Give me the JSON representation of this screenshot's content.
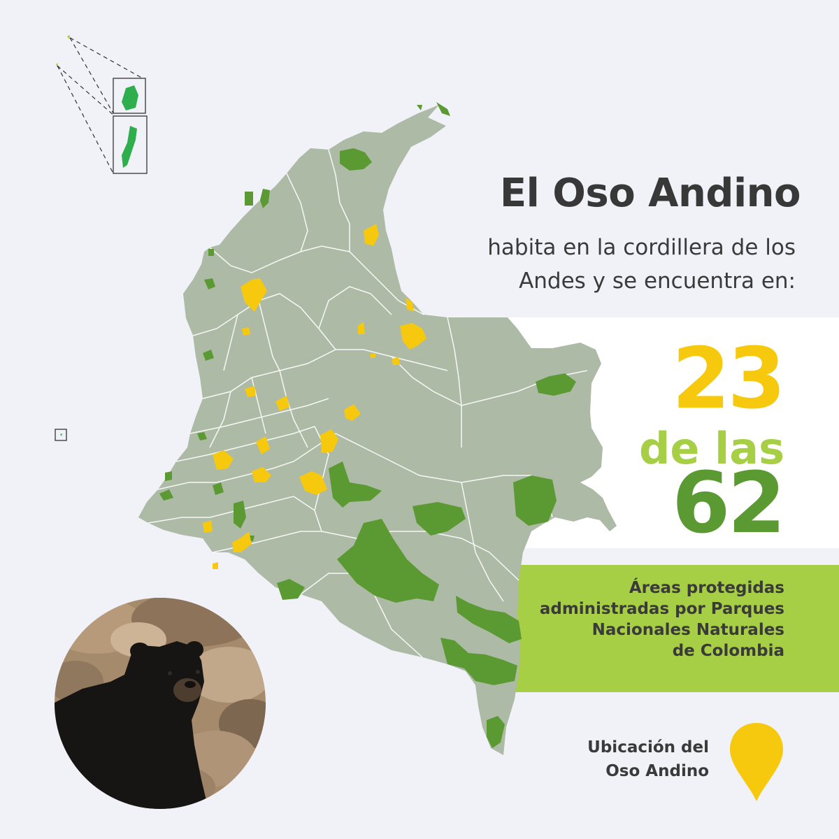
{
  "header": {
    "title": "El Oso Andino",
    "subtitle_line1": "habita en la cordillera de los",
    "subtitle_line2": "Andes y se encuentra en:"
  },
  "stats": {
    "count": "23",
    "connector": "de las",
    "total": "62",
    "count_value": 23,
    "total_value": 62
  },
  "description": {
    "line1": "Áreas protegidas",
    "line2": "administradas por Parques",
    "line3": "Nacionales Naturales",
    "line4": "de Colombia"
  },
  "legend": {
    "line1": "Ubicación del",
    "line2": "Oso Andino",
    "marker_icon": "location-pin-icon",
    "marker_color": "#f6c90e"
  },
  "colors": {
    "background": "#f1f1f8",
    "map_fill": "#adbaa5",
    "map_borders": "#ffffff",
    "protected_area": "#5b9a32",
    "bear_area": "#f6c90e",
    "island": "#2fae4e",
    "accent_green": "#a7cf45",
    "text": "#383838"
  },
  "photo": {
    "subject": "andean-bear-photo"
  }
}
